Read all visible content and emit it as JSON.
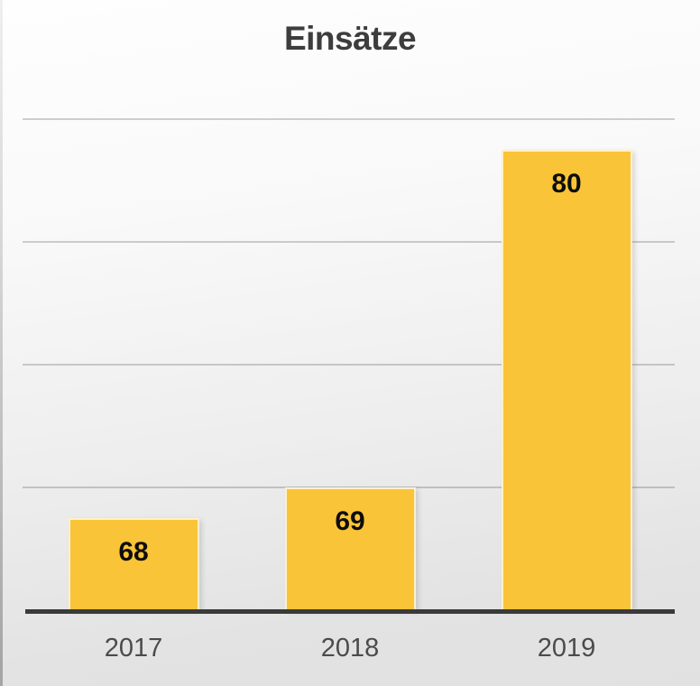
{
  "chart_data": {
    "type": "bar",
    "title": "Einsätze",
    "categories": [
      "2017",
      "2018",
      "2019"
    ],
    "values": [
      68,
      69,
      80
    ],
    "xlabel": "",
    "ylabel": "",
    "ylim": [
      65,
      83
    ],
    "gridline_values": [
      69,
      73,
      77,
      81
    ],
    "grid": "horizontal",
    "legend": "none",
    "value_labels_shown": true,
    "bar_color": "#F9C438",
    "bar_border_color": "rgba(255,255,255,0.75)",
    "value_label_color": "#0D0D0D",
    "tick_label_color": "#4B4B4B",
    "title_color": "#3D3D3D",
    "axis_line_color": "#3A3A3A",
    "gridline_color": "rgba(0,0,0,0.18)",
    "background_top_color": "#FEFEFE",
    "background_bottom_color": "#E1E1E1"
  }
}
